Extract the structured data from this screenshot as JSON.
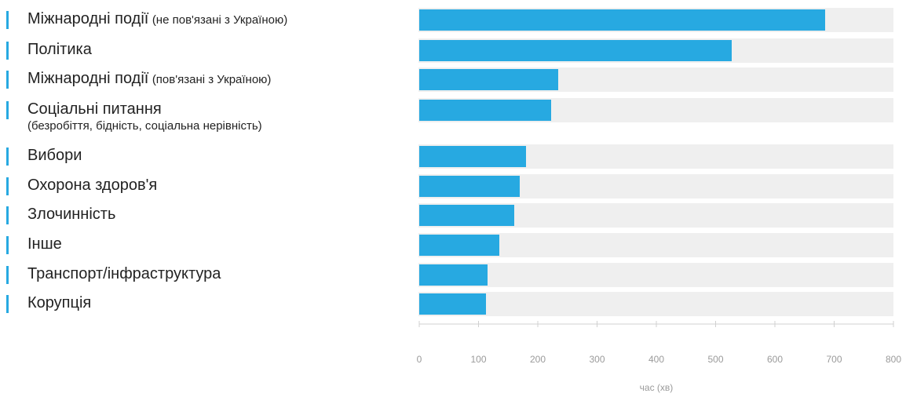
{
  "colors": {
    "bar": "#27a9e1",
    "track": "#efefef",
    "accent": "#27a9e1",
    "axis": "#d0d0d0"
  },
  "chart_data": {
    "type": "bar",
    "orientation": "horizontal",
    "title": "",
    "xlabel": "час (хв)",
    "ylabel": "",
    "xlim": [
      0,
      800
    ],
    "xticks": [
      0,
      100,
      200,
      300,
      400,
      500,
      600,
      700,
      800
    ],
    "categories": [
      {
        "main": "Міжнародні події",
        "note": "(не пов'язані з Україною)",
        "sub": ""
      },
      {
        "main": "Політика",
        "note": "",
        "sub": ""
      },
      {
        "main": "Міжнародні події",
        "note": "(пов'язані з Україною)",
        "sub": ""
      },
      {
        "main": "Соціальні питання",
        "note": "",
        "sub": "(безробіття, бідність, соціальна нерівність)"
      },
      {
        "main": "Вибори",
        "note": "",
        "sub": ""
      },
      {
        "main": "Охорона здоров'я",
        "note": "",
        "sub": ""
      },
      {
        "main": "Злочинність",
        "note": "",
        "sub": ""
      },
      {
        "main": "Інше",
        "note": "",
        "sub": ""
      },
      {
        "main": "Транспорт/інфраструктура",
        "note": "",
        "sub": ""
      },
      {
        "main": "Корупція",
        "note": "",
        "sub": ""
      }
    ],
    "values": [
      685,
      527,
      234,
      222,
      180,
      169,
      160,
      135,
      115,
      113
    ]
  }
}
